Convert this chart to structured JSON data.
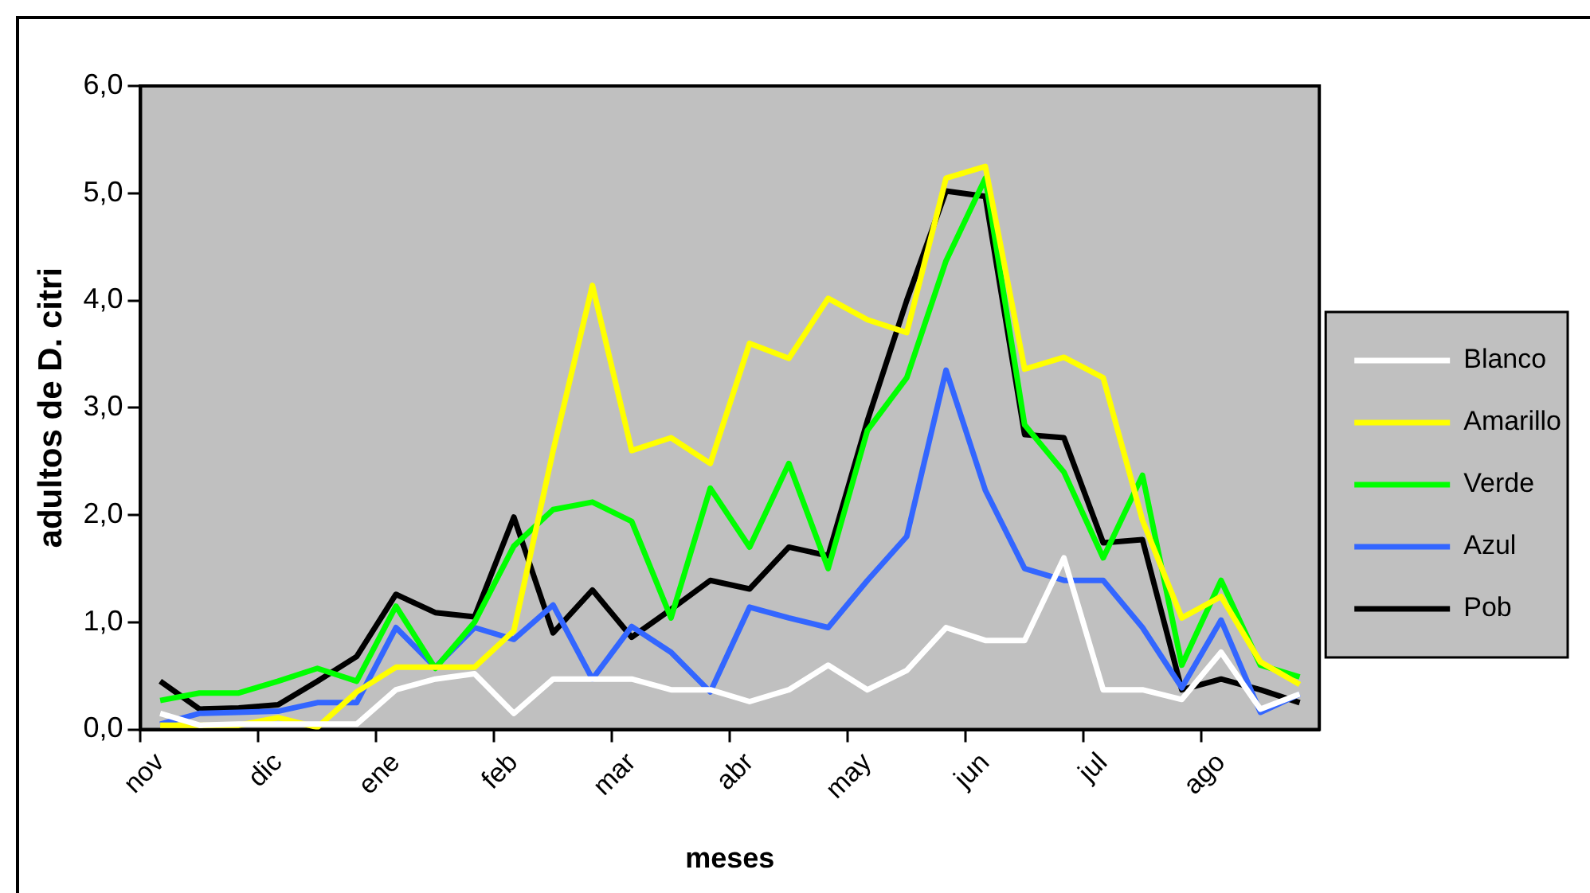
{
  "chart_data": {
    "type": "line",
    "xlabel": "meses",
    "ylabel": "adultos de D. citri",
    "categories": [
      "nov",
      null,
      null,
      "dic",
      null,
      null,
      "ene",
      null,
      null,
      "feb",
      null,
      null,
      "mar",
      null,
      null,
      "abr",
      null,
      null,
      "may",
      null,
      null,
      "jun",
      null,
      null,
      "jul",
      null,
      null,
      "ago",
      null,
      null
    ],
    "series": [
      {
        "name": "Blanco",
        "color": "#ffffff",
        "values": [
          0.15,
          0.04,
          0.05,
          0.05,
          0.05,
          0.05,
          0.37,
          0.47,
          0.52,
          0.15,
          0.47,
          0.47,
          0.47,
          0.37,
          0.37,
          0.26,
          0.37,
          0.6,
          0.37,
          0.55,
          0.95,
          0.83,
          0.83,
          1.6,
          0.37,
          0.37,
          0.28,
          0.72,
          0.19,
          0.33
        ]
      },
      {
        "name": "Amarillo",
        "color": "#ffff00",
        "values": [
          0.04,
          0.04,
          0.04,
          0.11,
          0.02,
          0.35,
          0.58,
          0.58,
          0.58,
          0.92,
          2.6,
          4.14,
          2.6,
          2.72,
          2.48,
          3.6,
          3.46,
          4.02,
          3.82,
          3.7,
          5.14,
          5.25,
          3.36,
          3.47,
          3.28,
          1.95,
          1.04,
          1.24,
          0.63,
          0.42
        ]
      },
      {
        "name": "Verde",
        "color": "#00ff00",
        "values": [
          0.27,
          0.34,
          0.34,
          0.45,
          0.57,
          0.45,
          1.15,
          0.57,
          1.0,
          1.71,
          2.05,
          2.12,
          1.94,
          1.04,
          2.25,
          1.7,
          2.48,
          1.5,
          2.79,
          3.28,
          4.37,
          5.14,
          2.84,
          2.4,
          1.6,
          2.37,
          0.6,
          1.39,
          0.6,
          0.49
        ]
      },
      {
        "name": "Azul",
        "color": "#3366ff",
        "values": [
          0.05,
          0.15,
          0.16,
          0.17,
          0.25,
          0.25,
          0.95,
          0.58,
          0.95,
          0.84,
          1.16,
          0.47,
          0.96,
          0.72,
          0.35,
          1.14,
          1.04,
          0.95,
          1.39,
          1.8,
          3.35,
          2.23,
          1.5,
          1.39,
          1.39,
          0.95,
          0.39,
          1.02,
          0.16,
          0.33
        ]
      },
      {
        "name": "Pob",
        "color": "#000000",
        "values": [
          0.45,
          0.19,
          0.2,
          0.23,
          0.45,
          0.68,
          1.26,
          1.09,
          1.05,
          1.98,
          0.9,
          1.3,
          0.86,
          1.12,
          1.39,
          1.31,
          1.7,
          1.62,
          2.88,
          4.0,
          5.02,
          4.97,
          2.75,
          2.72,
          1.74,
          1.77,
          0.37,
          0.47,
          0.37,
          0.25
        ]
      }
    ],
    "ylim": [
      0,
      6
    ],
    "yticks": [
      {
        "value": 0,
        "label": "0,0"
      },
      {
        "value": 1,
        "label": "1,0"
      },
      {
        "value": 2,
        "label": "2,0"
      },
      {
        "value": 3,
        "label": "3,0"
      },
      {
        "value": 4,
        "label": "4,0"
      },
      {
        "value": 5,
        "label": "5,0"
      },
      {
        "value": 6,
        "label": "6,0"
      }
    ],
    "grid": false,
    "legend": "right",
    "marker": "none",
    "line_style": "solid"
  }
}
